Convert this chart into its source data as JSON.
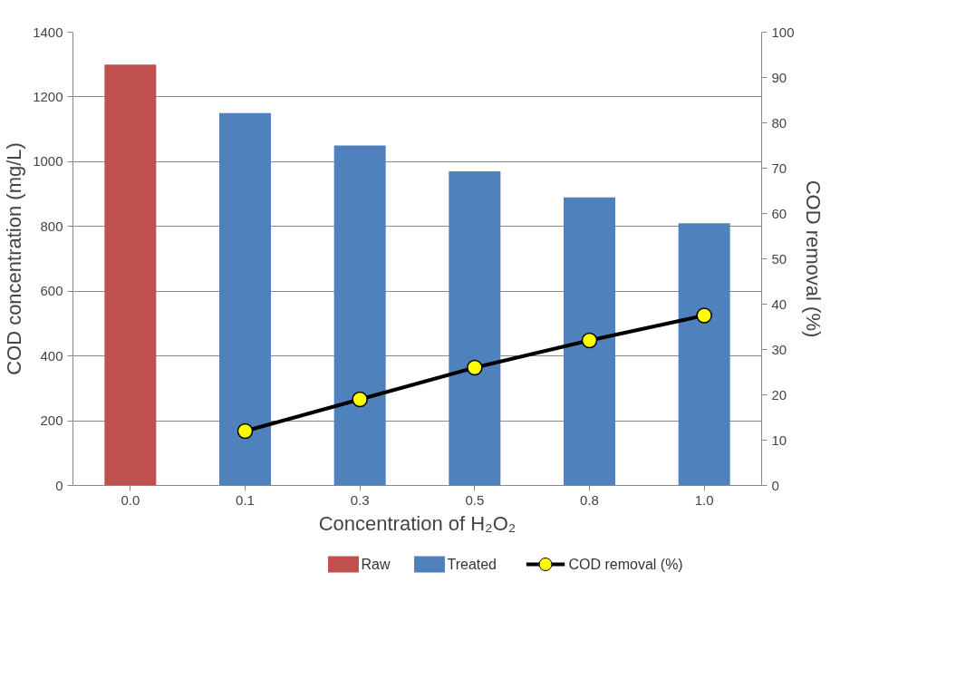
{
  "chart_data": {
    "type": "bar",
    "categories": [
      "0.0",
      "0.1",
      "0.3",
      "0.5",
      "0.8",
      "1.0"
    ],
    "xlabel": "Concentration of H₂O₂",
    "ylabel": "COD concentration (mg/L)",
    "y2label": "COD removal (%)",
    "series": [
      {
        "name": "Raw",
        "color": "#c0504d",
        "values": [
          1300,
          null,
          null,
          null,
          null,
          null
        ]
      },
      {
        "name": "Treated",
        "color": "#4f81bd",
        "values": [
          null,
          1150,
          1050,
          970,
          890,
          810
        ]
      },
      {
        "name": "COD removal (%)",
        "type": "line",
        "axis": "y2",
        "color": "#000000",
        "marker": "circle",
        "values": [
          null,
          12,
          19,
          26,
          32,
          37.5
        ]
      }
    ],
    "ylim": [
      0,
      1400
    ],
    "yticks": [
      0,
      200,
      400,
      600,
      800,
      1000,
      1200,
      1400
    ],
    "y2lim": [
      0,
      100
    ],
    "y2ticks": [
      0,
      10,
      20,
      30,
      40,
      50,
      60,
      70,
      80,
      90,
      100
    ],
    "grid": "y",
    "legend": "bottom"
  }
}
